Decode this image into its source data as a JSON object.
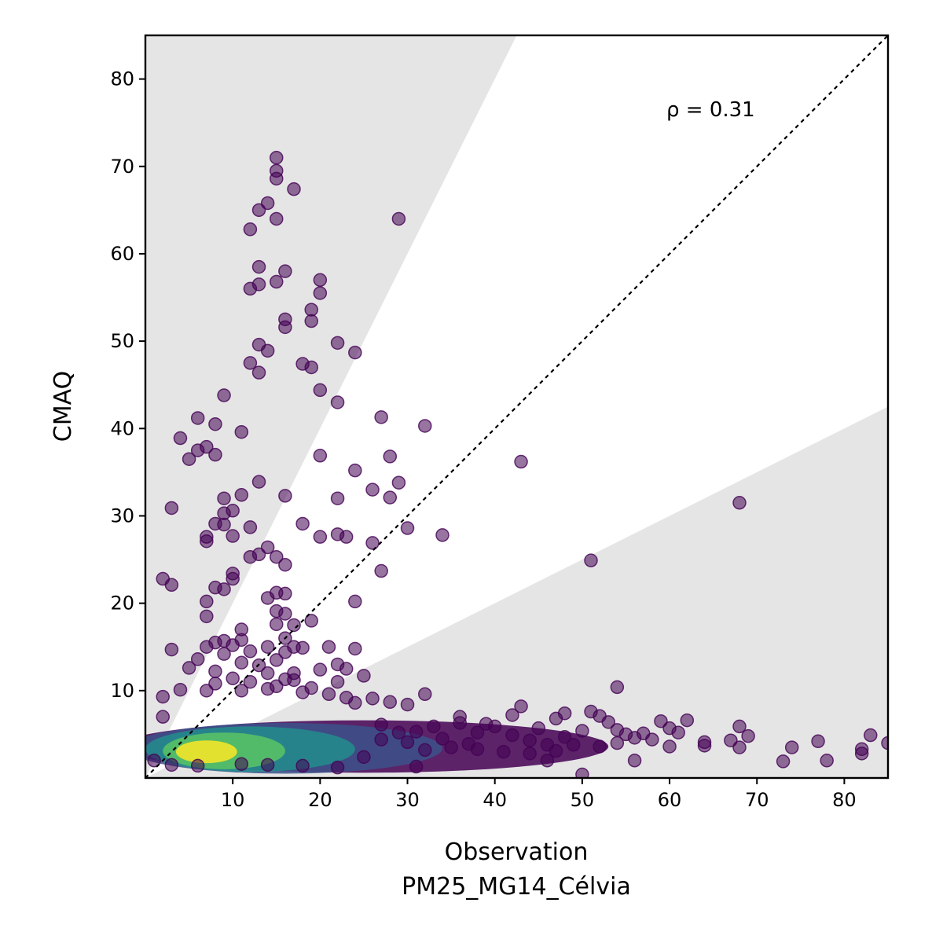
{
  "chart_data": {
    "type": "scatter",
    "xlabel": "Observation",
    "xlabel_sub": "PM25_MG14_Célvia",
    "ylabel": "CMAQ",
    "xlim": [
      0,
      85
    ],
    "ylim": [
      0,
      85
    ],
    "xticks": [
      10,
      20,
      30,
      40,
      50,
      60,
      70,
      80
    ],
    "yticks": [
      10,
      20,
      30,
      40,
      50,
      60,
      70,
      80
    ],
    "annotation": "ρ = 0.31",
    "grid": false,
    "reference_line": "1:1",
    "shaded_band": {
      "upper_slope": 2,
      "lower_slope": 0.5,
      "color": "#e5e5e5"
    },
    "colormap": "viridis",
    "colors": {
      "low": "#440154",
      "mid": "#21918c",
      "high": "#fde725"
    },
    "points": [
      [
        15,
        71
      ],
      [
        15,
        69.5
      ],
      [
        15,
        68.6
      ],
      [
        17,
        67.4
      ],
      [
        14,
        65.8
      ],
      [
        13,
        65
      ],
      [
        15,
        64
      ],
      [
        29,
        64
      ],
      [
        12,
        62.8
      ],
      [
        13,
        58.5
      ],
      [
        16,
        58
      ],
      [
        20,
        57
      ],
      [
        15,
        56.8
      ],
      [
        12,
        56
      ],
      [
        13,
        56.5
      ],
      [
        20,
        55.5
      ],
      [
        19,
        53.6
      ],
      [
        16,
        52.5
      ],
      [
        19,
        52.3
      ],
      [
        16,
        51.6
      ],
      [
        22,
        49.8
      ],
      [
        13,
        49.6
      ],
      [
        14,
        48.9
      ],
      [
        24,
        48.7
      ],
      [
        12,
        47.5
      ],
      [
        18,
        47.4
      ],
      [
        19,
        47
      ],
      [
        13,
        46.4
      ],
      [
        20,
        44.4
      ],
      [
        9,
        43.8
      ],
      [
        22,
        43
      ],
      [
        27,
        41.3
      ],
      [
        6,
        41.2
      ],
      [
        8,
        40.5
      ],
      [
        32,
        40.3
      ],
      [
        11,
        39.6
      ],
      [
        4,
        38.9
      ],
      [
        7,
        37.9
      ],
      [
        6,
        37.5
      ],
      [
        8,
        37
      ],
      [
        5,
        36.5
      ],
      [
        20,
        36.9
      ],
      [
        28,
        36.8
      ],
      [
        43,
        36.2
      ],
      [
        24,
        35.2
      ],
      [
        13,
        33.9
      ],
      [
        29,
        33.8
      ],
      [
        26,
        33
      ],
      [
        16,
        32.3
      ],
      [
        11,
        32.4
      ],
      [
        9,
        32
      ],
      [
        22,
        32
      ],
      [
        28,
        32.1
      ],
      [
        10,
        30.6
      ],
      [
        3,
        30.9
      ],
      [
        9,
        30.3
      ],
      [
        68,
        31.5
      ],
      [
        8,
        29.1
      ],
      [
        18,
        29.1
      ],
      [
        30,
        28.6
      ],
      [
        9,
        29
      ],
      [
        12,
        28.7
      ],
      [
        22,
        27.9
      ],
      [
        34,
        27.8
      ],
      [
        10,
        27.7
      ],
      [
        7,
        27.6
      ],
      [
        20,
        27.6
      ],
      [
        23,
        27.6
      ],
      [
        7,
        27.1
      ],
      [
        26,
        26.9
      ],
      [
        14,
        26.4
      ],
      [
        13,
        25.6
      ],
      [
        12,
        25.3
      ],
      [
        15,
        25.3
      ],
      [
        51,
        24.9
      ],
      [
        16,
        24.4
      ],
      [
        27,
        23.7
      ],
      [
        10,
        23.4
      ],
      [
        10,
        22.8
      ],
      [
        2,
        22.8
      ],
      [
        3,
        22.1
      ],
      [
        8,
        21.8
      ],
      [
        9,
        21.6
      ],
      [
        15,
        21.2
      ],
      [
        16,
        21.1
      ],
      [
        14,
        20.6
      ],
      [
        7,
        20.2
      ],
      [
        24,
        20.2
      ],
      [
        15,
        19.1
      ],
      [
        16,
        18.8
      ],
      [
        7,
        18.5
      ],
      [
        15,
        17.6
      ],
      [
        19,
        18
      ],
      [
        17,
        17.5
      ],
      [
        11,
        17
      ],
      [
        16,
        16
      ],
      [
        9,
        15.7
      ],
      [
        11,
        15.8
      ],
      [
        8,
        15.5
      ],
      [
        10,
        15.2
      ],
      [
        7,
        15
      ],
      [
        3,
        14.7
      ],
      [
        14,
        15
      ],
      [
        17,
        15
      ],
      [
        21,
        15
      ],
      [
        24,
        14.8
      ],
      [
        18,
        14.9
      ],
      [
        12,
        14.5
      ],
      [
        16,
        14.4
      ],
      [
        9,
        14.2
      ],
      [
        15,
        13.5
      ],
      [
        6,
        13.6
      ],
      [
        11,
        13.2
      ],
      [
        13,
        12.9
      ],
      [
        22,
        13
      ],
      [
        23,
        12.5
      ],
      [
        5,
        12.6
      ],
      [
        8,
        12.2
      ],
      [
        20,
        12.4
      ],
      [
        17,
        12
      ],
      [
        14,
        12
      ],
      [
        25,
        11.7
      ],
      [
        10,
        11.4
      ],
      [
        16,
        11.3
      ],
      [
        17,
        11.2
      ],
      [
        12,
        11
      ],
      [
        22,
        11
      ],
      [
        8,
        10.8
      ],
      [
        15,
        10.5
      ],
      [
        4,
        10.1
      ],
      [
        19,
        10.3
      ],
      [
        54,
        10.4
      ],
      [
        7,
        10
      ],
      [
        11,
        10
      ],
      [
        14,
        10.2
      ],
      [
        18,
        9.8
      ],
      [
        21,
        9.6
      ],
      [
        32,
        9.6
      ],
      [
        2,
        9.3
      ],
      [
        23,
        9.2
      ],
      [
        26,
        9.1
      ],
      [
        28,
        8.7
      ],
      [
        24,
        8.6
      ],
      [
        30,
        8.4
      ],
      [
        43,
        8.2
      ],
      [
        48,
        7.4
      ],
      [
        51,
        7.6
      ],
      [
        2,
        7
      ],
      [
        36,
        7
      ],
      [
        42,
        7.2
      ],
      [
        52,
        7.1
      ],
      [
        62,
        6.6
      ],
      [
        59,
        6.5
      ],
      [
        36,
        6.3
      ],
      [
        39,
        6.2
      ],
      [
        47,
        6.8
      ],
      [
        53,
        6.4
      ],
      [
        27,
        6.1
      ],
      [
        33,
        5.9
      ],
      [
        40,
        5.9
      ],
      [
        45,
        5.7
      ],
      [
        54,
        5.5
      ],
      [
        68,
        5.9
      ],
      [
        55,
        5
      ],
      [
        57,
        5.1
      ],
      [
        60,
        5.7
      ],
      [
        61,
        5.2
      ],
      [
        69,
        4.8
      ],
      [
        83,
        4.9
      ],
      [
        31,
        5.3
      ],
      [
        38,
        5.2
      ],
      [
        42,
        4.9
      ],
      [
        48,
        4.7
      ],
      [
        50,
        5.4
      ],
      [
        56,
        4.6
      ],
      [
        58,
        4.4
      ],
      [
        64,
        4.1
      ],
      [
        67,
        4.3
      ],
      [
        77,
        4.2
      ],
      [
        85,
        4
      ],
      [
        44,
        4.3
      ],
      [
        46,
        3.8
      ],
      [
        49,
        3.8
      ],
      [
        52,
        3.6
      ],
      [
        54,
        4
      ],
      [
        60,
        3.6
      ],
      [
        64,
        3.7
      ],
      [
        68,
        3.5
      ],
      [
        74,
        3.5
      ],
      [
        82,
        3.3
      ],
      [
        82,
        2.8
      ],
      [
        47,
        3.1
      ],
      [
        44,
        2.8
      ],
      [
        41,
        3
      ],
      [
        56,
        2
      ],
      [
        73,
        1.9
      ],
      [
        78,
        2
      ],
      [
        46,
        2
      ],
      [
        50,
        0.4
      ],
      [
        38,
        3.3
      ],
      [
        35,
        3.5
      ],
      [
        34,
        4.5
      ],
      [
        37,
        3.9
      ],
      [
        30,
        4.1
      ],
      [
        32,
        3.2
      ],
      [
        29,
        5.2
      ],
      [
        27,
        4.4
      ],
      [
        25,
        2.4
      ],
      [
        22,
        1.2
      ],
      [
        18,
        1.4
      ],
      [
        14,
        1.5
      ],
      [
        11,
        1.6
      ],
      [
        6,
        1.4
      ],
      [
        3,
        1.5
      ],
      [
        1,
        2
      ],
      [
        31,
        1.3
      ]
    ]
  }
}
